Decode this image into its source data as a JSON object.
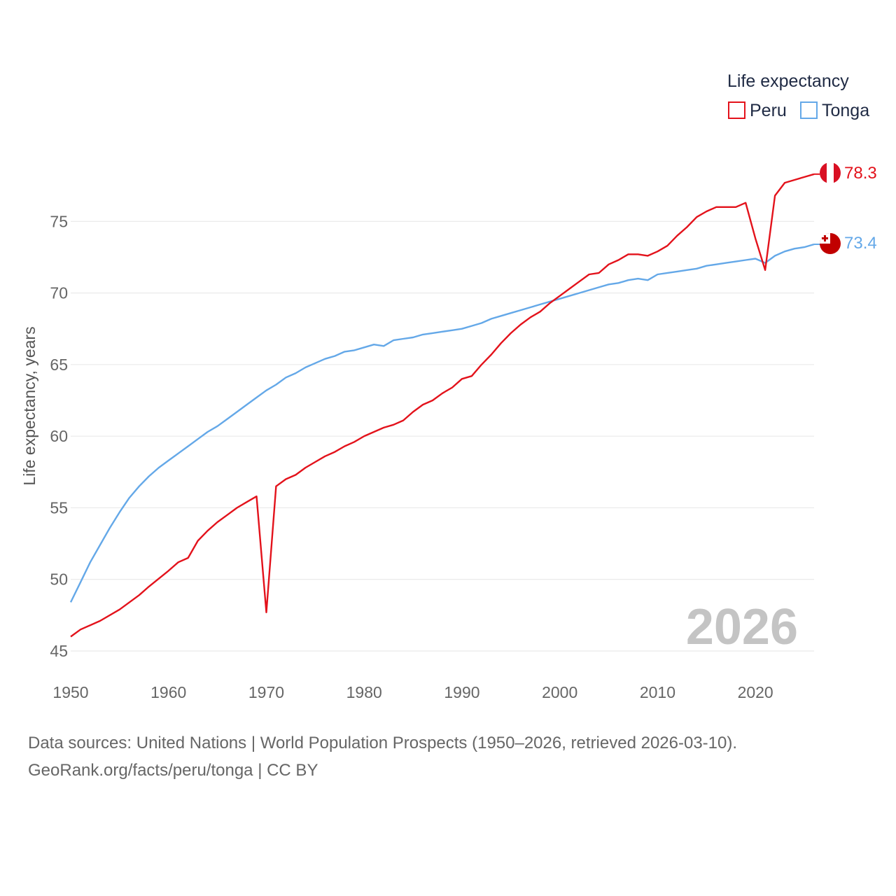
{
  "chart_data": {
    "type": "line",
    "legend_title": "Life expectancy",
    "ylabel": "Life expectancy, years",
    "xlabel": "",
    "year_display": "2026",
    "xlim": [
      1950,
      2026
    ],
    "ylim": [
      45,
      80
    ],
    "x_ticks": [
      "1950",
      "1960",
      "1970",
      "1980",
      "1990",
      "2000",
      "2010",
      "2020"
    ],
    "y_ticks": [
      "45",
      "50",
      "55",
      "60",
      "65",
      "70",
      "75"
    ],
    "legend_position": "top-right",
    "series": [
      {
        "name": "Peru",
        "color": "#e3121b",
        "end_label": "78.3",
        "flag_icon": "peru-flag-icon",
        "points": [
          [
            1950,
            46.0
          ],
          [
            1951,
            46.5
          ],
          [
            1953,
            47.1
          ],
          [
            1955,
            47.9
          ],
          [
            1957,
            48.9
          ],
          [
            1958,
            49.5
          ],
          [
            1960,
            50.6
          ],
          [
            1961,
            51.2
          ],
          [
            1962,
            51.5
          ],
          [
            1963,
            52.7
          ],
          [
            1964,
            53.4
          ],
          [
            1965,
            54.0
          ],
          [
            1966,
            54.5
          ],
          [
            1967,
            55.0
          ],
          [
            1968,
            55.4
          ],
          [
            1969,
            55.8
          ],
          [
            1970,
            47.7
          ],
          [
            1971,
            56.5
          ],
          [
            1972,
            57.0
          ],
          [
            1973,
            57.3
          ],
          [
            1974,
            57.8
          ],
          [
            1975,
            58.2
          ],
          [
            1976,
            58.6
          ],
          [
            1977,
            58.9
          ],
          [
            1978,
            59.3
          ],
          [
            1979,
            59.6
          ],
          [
            1980,
            60.0
          ],
          [
            1981,
            60.3
          ],
          [
            1982,
            60.6
          ],
          [
            1983,
            60.8
          ],
          [
            1984,
            61.1
          ],
          [
            1985,
            61.7
          ],
          [
            1986,
            62.2
          ],
          [
            1987,
            62.5
          ],
          [
            1988,
            63.0
          ],
          [
            1989,
            63.4
          ],
          [
            1990,
            64.0
          ],
          [
            1991,
            64.2
          ],
          [
            1992,
            65.0
          ],
          [
            1993,
            65.7
          ],
          [
            1994,
            66.5
          ],
          [
            1995,
            67.2
          ],
          [
            1996,
            67.8
          ],
          [
            1997,
            68.3
          ],
          [
            1998,
            68.7
          ],
          [
            1999,
            69.3
          ],
          [
            2000,
            69.8
          ],
          [
            2001,
            70.3
          ],
          [
            2002,
            70.8
          ],
          [
            2003,
            71.3
          ],
          [
            2004,
            71.4
          ],
          [
            2005,
            72.0
          ],
          [
            2006,
            72.3
          ],
          [
            2007,
            72.7
          ],
          [
            2008,
            72.7
          ],
          [
            2009,
            72.6
          ],
          [
            2010,
            72.9
          ],
          [
            2011,
            73.3
          ],
          [
            2012,
            74.0
          ],
          [
            2013,
            74.6
          ],
          [
            2014,
            75.3
          ],
          [
            2015,
            75.7
          ],
          [
            2016,
            76.0
          ],
          [
            2017,
            76.0
          ],
          [
            2018,
            76.0
          ],
          [
            2019,
            76.3
          ],
          [
            2020,
            73.8
          ],
          [
            2021,
            71.6
          ],
          [
            2022,
            76.8
          ],
          [
            2023,
            77.7
          ],
          [
            2024,
            77.9
          ],
          [
            2025,
            78.1
          ],
          [
            2026,
            78.3
          ]
        ]
      },
      {
        "name": "Tonga",
        "color": "#64a8e8",
        "end_label": "73.4",
        "flag_icon": "tonga-flag-icon",
        "points": [
          [
            1950,
            48.4
          ],
          [
            1951,
            49.8
          ],
          [
            1952,
            51.2
          ],
          [
            1953,
            52.4
          ],
          [
            1954,
            53.6
          ],
          [
            1955,
            54.7
          ],
          [
            1956,
            55.7
          ],
          [
            1957,
            56.5
          ],
          [
            1958,
            57.2
          ],
          [
            1959,
            57.8
          ],
          [
            1960,
            58.3
          ],
          [
            1961,
            58.8
          ],
          [
            1962,
            59.3
          ],
          [
            1963,
            59.8
          ],
          [
            1964,
            60.3
          ],
          [
            1965,
            60.7
          ],
          [
            1966,
            61.2
          ],
          [
            1967,
            61.7
          ],
          [
            1968,
            62.2
          ],
          [
            1969,
            62.7
          ],
          [
            1970,
            63.2
          ],
          [
            1971,
            63.6
          ],
          [
            1972,
            64.1
          ],
          [
            1973,
            64.4
          ],
          [
            1974,
            64.8
          ],
          [
            1975,
            65.1
          ],
          [
            1976,
            65.4
          ],
          [
            1977,
            65.6
          ],
          [
            1978,
            65.9
          ],
          [
            1979,
            66.0
          ],
          [
            1980,
            66.2
          ],
          [
            1981,
            66.4
          ],
          [
            1982,
            66.3
          ],
          [
            1983,
            66.7
          ],
          [
            1984,
            66.8
          ],
          [
            1985,
            66.9
          ],
          [
            1986,
            67.1
          ],
          [
            1987,
            67.2
          ],
          [
            1988,
            67.3
          ],
          [
            1989,
            67.4
          ],
          [
            1990,
            67.5
          ],
          [
            1991,
            67.7
          ],
          [
            1992,
            67.9
          ],
          [
            1993,
            68.2
          ],
          [
            1994,
            68.4
          ],
          [
            1995,
            68.6
          ],
          [
            1996,
            68.8
          ],
          [
            1997,
            69.0
          ],
          [
            1998,
            69.2
          ],
          [
            1999,
            69.4
          ],
          [
            2000,
            69.6
          ],
          [
            2001,
            69.8
          ],
          [
            2002,
            70.0
          ],
          [
            2003,
            70.2
          ],
          [
            2004,
            70.4
          ],
          [
            2005,
            70.6
          ],
          [
            2006,
            70.7
          ],
          [
            2007,
            70.9
          ],
          [
            2008,
            71.0
          ],
          [
            2009,
            70.9
          ],
          [
            2010,
            71.3
          ],
          [
            2011,
            71.4
          ],
          [
            2012,
            71.5
          ],
          [
            2013,
            71.6
          ],
          [
            2014,
            71.7
          ],
          [
            2015,
            71.9
          ],
          [
            2016,
            72.0
          ],
          [
            2017,
            72.1
          ],
          [
            2018,
            72.2
          ],
          [
            2019,
            72.3
          ],
          [
            2020,
            72.4
          ],
          [
            2021,
            72.1
          ],
          [
            2022,
            72.6
          ],
          [
            2023,
            72.9
          ],
          [
            2024,
            73.1
          ],
          [
            2025,
            73.2
          ],
          [
            2026,
            73.4
          ]
        ]
      }
    ]
  },
  "footer": {
    "source_line": "Data sources: United Nations | World Population Prospects (1950–2026, retrieved 2026-03-10).",
    "credit_line": "GeoRank.org/facts/peru/tonga | CC BY"
  }
}
